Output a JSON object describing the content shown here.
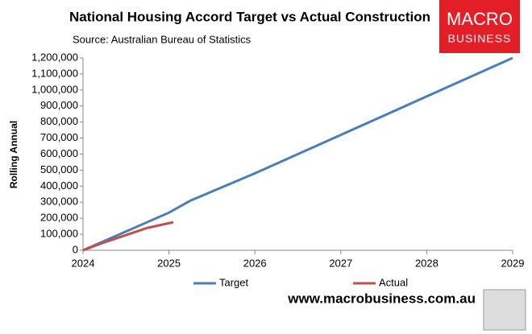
{
  "chart_data": {
    "type": "line",
    "title": "National Housing Accord Target vs Actual Construction",
    "subtitle": "Source: Australian Bureau of Statistics",
    "ylabel": "Rolling Annual",
    "logo_top": "MACRO",
    "logo_bottom": "BUSINESS",
    "footer": "www.macrobusiness.com.au",
    "xlim": [
      2024,
      2029
    ],
    "xticks": [
      2024,
      2025,
      2026,
      2027,
      2028,
      2029
    ],
    "ylim": [
      0,
      1200000
    ],
    "yticks": [
      0,
      {
        "value": 100000,
        "label": "100,000"
      },
      {
        "value": 200000,
        "label": "200,000"
      },
      {
        "value": 300000,
        "label": "300,000"
      },
      {
        "value": 400000,
        "label": "400,000"
      },
      {
        "value": 500000,
        "label": "500,000"
      },
      {
        "value": 600000,
        "label": "600,000"
      },
      {
        "value": 700000,
        "label": "700,000"
      },
      {
        "value": 800000,
        "label": "800,000"
      },
      {
        "value": 900000,
        "label": "900,000"
      },
      {
        "value": 1000000,
        "label": "1,000,000"
      },
      {
        "value": 1100000,
        "label": "1,100,000"
      },
      {
        "value": 1200000,
        "label": "1,200,000"
      }
    ],
    "grid": false,
    "legend": "bottom",
    "series": [
      {
        "name": "Target",
        "color": "#4a7ebb",
        "x": [
          2024,
          2025,
          2025.25,
          2026,
          2026.5,
          2027,
          2028,
          2029
        ],
        "values": [
          0,
          235000,
          310000,
          480000,
          600000,
          720000,
          960000,
          1200000
        ]
      },
      {
        "name": "Actual",
        "color": "#c0504d",
        "x": [
          2024,
          2024.25,
          2024.5,
          2024.75,
          2025.05
        ],
        "values": [
          0,
          50000,
          95000,
          140000,
          175000
        ]
      }
    ]
  }
}
